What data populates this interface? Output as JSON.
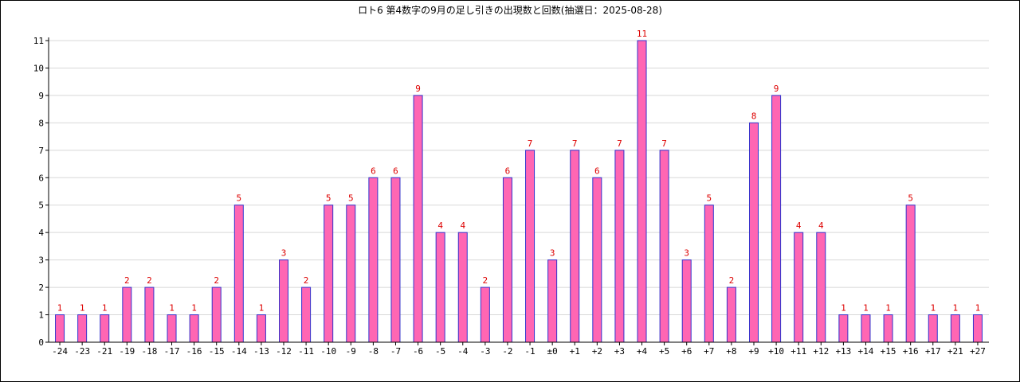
{
  "chart_data": {
    "type": "bar",
    "title": "ロト6 第4数字の9月の足し引きの出現数と回数(抽選日：2025-08-28)",
    "xlabel": "",
    "ylabel": "",
    "ylim": [
      0,
      11
    ],
    "yticks": [
      0,
      1,
      2,
      3,
      4,
      5,
      6,
      7,
      8,
      9,
      10,
      11
    ],
    "grid": true,
    "categories": [
      "-24",
      "-23",
      "-21",
      "-19",
      "-18",
      "-17",
      "-16",
      "-15",
      "-14",
      "-13",
      "-12",
      "-11",
      "-10",
      "-9",
      "-8",
      "-7",
      "-6",
      "-5",
      "-4",
      "-3",
      "-2",
      "-1",
      "±0",
      "+1",
      "+2",
      "+3",
      "+4",
      "+5",
      "+6",
      "+7",
      "+8",
      "+9",
      "+10",
      "+11",
      "+12",
      "+13",
      "+14",
      "+15",
      "+16",
      "+17",
      "+21",
      "+27"
    ],
    "values": [
      1,
      1,
      1,
      2,
      2,
      1,
      1,
      2,
      5,
      1,
      3,
      2,
      5,
      5,
      6,
      6,
      9,
      4,
      4,
      2,
      6,
      7,
      3,
      7,
      6,
      7,
      11,
      7,
      3,
      5,
      2,
      8,
      9,
      4,
      4,
      1,
      1,
      1,
      5,
      1,
      1,
      1
    ],
    "colors": {
      "bar_fill": "#ff66b3",
      "bar_stroke": "#3333cc",
      "value_label": "#dd0000",
      "grid": "#d8d8d8",
      "axis": "#000000"
    }
  }
}
